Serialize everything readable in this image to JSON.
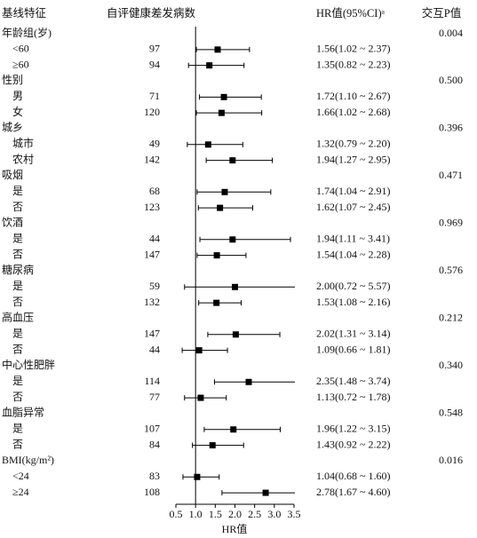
{
  "chart_data": {
    "type": "forest",
    "columns": [
      "基线特征",
      "自评健康差发病数",
      "HR值(95%CI)ᵃ",
      "交互P值"
    ],
    "x_label": "HR值",
    "xlim": [
      0.5,
      3.5
    ],
    "xticks": [
      0.5,
      {
        "value": 1,
        "label": "1.0"
      },
      1.5,
      {
        "value": 2,
        "label": "2.0"
      },
      2.5,
      {
        "value": 3,
        "label": "3.0"
      },
      3.5
    ],
    "reference_line": 1,
    "color": "#000000",
    "groups": [
      {
        "name": "年龄组(岁)",
        "p_value": "0.004",
        "rows": [
          {
            "label": "<60",
            "n": 97,
            "hr": 1.56,
            "lower": 1.02,
            "upper": 2.37,
            "hr_label": "1.56(1.02 ~ 2.37)"
          },
          {
            "label": "≥60",
            "n": 94,
            "hr": 1.35,
            "lower": 0.82,
            "upper": 2.23,
            "hr_label": "1.35(0.82 ~ 2.23)"
          }
        ]
      },
      {
        "name": "性别",
        "p_value": "0.500",
        "rows": [
          {
            "label": "男",
            "n": 71,
            "hr": 1.72,
            "lower": 1.1,
            "upper": 2.67,
            "hr_label": "1.72(1.10 ~ 2.67)"
          },
          {
            "label": "女",
            "n": 120,
            "hr": 1.66,
            "lower": 1.02,
            "upper": 2.68,
            "hr_label": "1.66(1.02 ~ 2.68)"
          }
        ]
      },
      {
        "name": "城乡",
        "p_value": "0.396",
        "rows": [
          {
            "label": "城市",
            "n": 49,
            "hr": 1.32,
            "lower": 0.79,
            "upper": 2.2,
            "hr_label": "1.32(0.79 ~ 2.20)"
          },
          {
            "label": "农村",
            "n": 142,
            "hr": 1.94,
            "lower": 1.27,
            "upper": 2.95,
            "hr_label": "1.94(1.27 ~ 2.95)"
          }
        ]
      },
      {
        "name": "吸烟",
        "p_value": "0.471",
        "rows": [
          {
            "label": "是",
            "n": 68,
            "hr": 1.74,
            "lower": 1.04,
            "upper": 2.91,
            "hr_label": "1.74(1.04 ~ 2.91)"
          },
          {
            "label": "否",
            "n": 123,
            "hr": 1.62,
            "lower": 1.07,
            "upper": 2.45,
            "hr_label": "1.62(1.07 ~ 2.45)"
          }
        ]
      },
      {
        "name": "饮酒",
        "p_value": "0.969",
        "rows": [
          {
            "label": "是",
            "n": 44,
            "hr": 1.94,
            "lower": 1.11,
            "upper": 3.41,
            "hr_label": "1.94(1.11 ~ 3.41)"
          },
          {
            "label": "否",
            "n": 147,
            "hr": 1.54,
            "lower": 1.04,
            "upper": 2.28,
            "hr_label": "1.54(1.04 ~ 2.28)"
          }
        ]
      },
      {
        "name": "糖尿病",
        "p_value": "0.576",
        "rows": [
          {
            "label": "是",
            "n": 59,
            "hr": 2.0,
            "lower": 0.72,
            "upper": 5.57,
            "hr_label": "2.00(0.72 ~ 5.57)"
          },
          {
            "label": "否",
            "n": 132,
            "hr": 1.53,
            "lower": 1.08,
            "upper": 2.16,
            "hr_label": "1.53(1.08 ~ 2.16)"
          }
        ]
      },
      {
        "name": "高血压",
        "p_value": "0.212",
        "rows": [
          {
            "label": "是",
            "n": 147,
            "hr": 2.02,
            "lower": 1.31,
            "upper": 3.14,
            "hr_label": "2.02(1.31 ~ 3.14)"
          },
          {
            "label": "否",
            "n": 44,
            "hr": 1.09,
            "lower": 0.66,
            "upper": 1.81,
            "hr_label": "1.09(0.66 ~ 1.81)"
          }
        ]
      },
      {
        "name": "中心性肥胖",
        "p_value": "0.340",
        "rows": [
          {
            "label": "是",
            "n": 114,
            "hr": 2.35,
            "lower": 1.48,
            "upper": 3.74,
            "hr_label": "2.35(1.48 ~ 3.74)"
          },
          {
            "label": "否",
            "n": 77,
            "hr": 1.13,
            "lower": 0.72,
            "upper": 1.78,
            "hr_label": "1.13(0.72 ~ 1.78)"
          }
        ]
      },
      {
        "name": "血脂异常",
        "p_value": "0.548",
        "rows": [
          {
            "label": "是",
            "n": 107,
            "hr": 1.96,
            "lower": 1.22,
            "upper": 3.15,
            "hr_label": "1.96(1.22 ~ 3.15)"
          },
          {
            "label": "否",
            "n": 84,
            "hr": 1.43,
            "lower": 0.92,
            "upper": 2.22,
            "hr_label": "1.43(0.92 ~ 2.22)"
          }
        ]
      },
      {
        "name": "BMI(kg/m²)",
        "p_value": "0.016",
        "rows": [
          {
            "label": "<24",
            "n": 83,
            "hr": 1.04,
            "lower": 0.68,
            "upper": 1.6,
            "hr_label": "1.04(0.68 ~ 1.60)"
          },
          {
            "label": "≥24",
            "n": 108,
            "hr": 2.78,
            "lower": 1.67,
            "upper": 4.6,
            "hr_label": "2.78(1.67 ~ 4.60)"
          }
        ]
      }
    ]
  }
}
